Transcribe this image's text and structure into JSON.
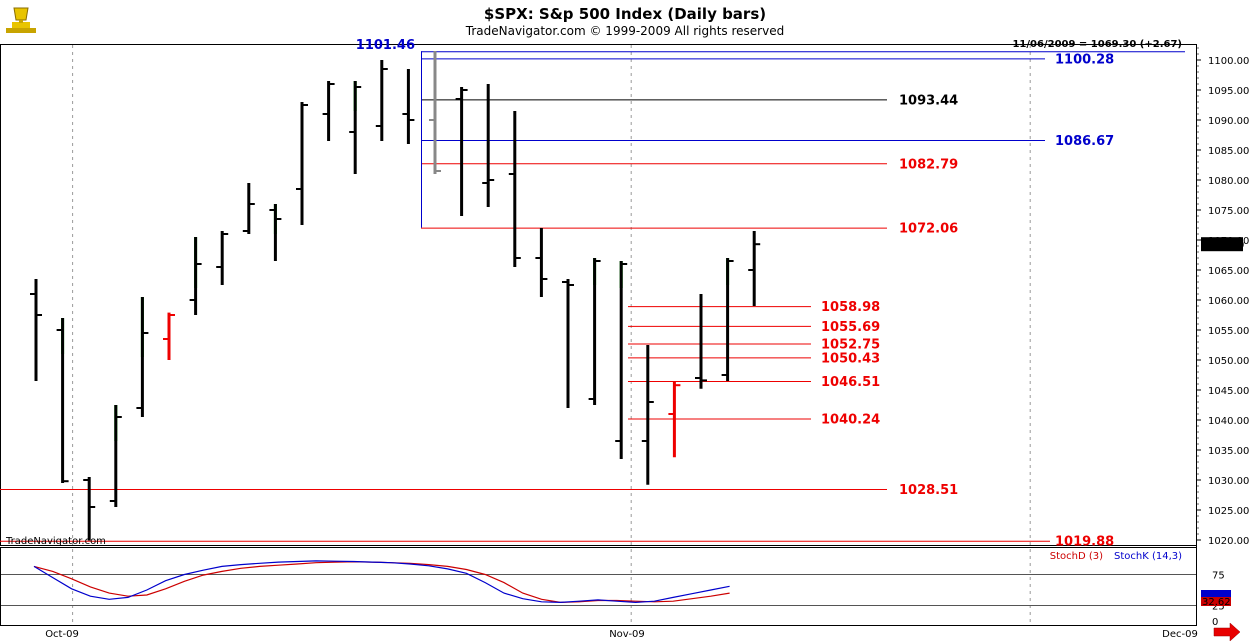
{
  "header": {
    "title": "$SPX:  S&p 500 Index  (Daily bars)",
    "subtitle": "TradeNavigator.com © 1999-2009 All rights reserved",
    "info": "11/06/2009 = 1069.30 (+2.67)",
    "watermark": "TradeNavigator.com"
  },
  "icons": {
    "logo": "trophy-icon",
    "next": "red-right-arrow-icon"
  },
  "colors": {
    "up": "#00dd00",
    "down": "#ee0000",
    "bar": "#000000",
    "blue_level": "#0000cc",
    "red_level": "#ee0000",
    "stoch_d": "#cc0000",
    "stoch_k": "#0000cc",
    "grid": "#9a9a9a"
  },
  "chart_data": [
    {
      "type": "ohlc",
      "title": "$SPX:  S&p 500 Index  (Daily bars)",
      "ylim": [
        1017,
        1104
      ],
      "y_ticks": [
        "1100.00",
        "1095.00",
        "1090.00",
        "1085.00",
        "1080.00",
        "1075.00",
        "1070.00",
        "1065.00",
        "1060.00",
        "1055.00",
        "1050.00",
        "1045.00",
        "1040.00",
        "1035.00",
        "1030.00",
        "1025.00",
        "1020.00"
      ],
      "x_labels": [
        {
          "label": "Oct-09",
          "bar": 1
        },
        {
          "label": "Nov-09",
          "bar": 22
        },
        {
          "label": "Dec-09",
          "bar": 37
        }
      ],
      "last_price_label": "1069.30",
      "bars": [
        {
          "o": 1061,
          "h": 1063.5,
          "l": 1046.5,
          "c": 1057.5
        },
        {
          "o": 1055,
          "h": 1057,
          "l": 1029.5,
          "c": 1029.8,
          "mark": "green"
        },
        {
          "o": 1030,
          "h": 1030.5,
          "l": 1019.9,
          "c": 1025.5
        },
        {
          "o": 1026.5,
          "h": 1042.5,
          "l": 1025.5,
          "c": 1040.5,
          "mark": "green"
        },
        {
          "o": 1042,
          "h": 1060.5,
          "l": 1040.5,
          "c": 1054.5,
          "mark": "green"
        },
        {
          "o": 1053.5,
          "h": 1057.9,
          "l": 1050,
          "c": 1057.5,
          "mark": "red"
        },
        {
          "o": 1060,
          "h": 1070.5,
          "l": 1057.5,
          "c": 1066,
          "mark": "green"
        },
        {
          "o": 1065.5,
          "h": 1071.5,
          "l": 1062.5,
          "c": 1071
        },
        {
          "o": 1071.5,
          "h": 1079.5,
          "l": 1071,
          "c": 1076
        },
        {
          "o": 1075,
          "h": 1076,
          "l": 1066.5,
          "c": 1073.5,
          "mark": "green"
        },
        {
          "o": 1078.5,
          "h": 1093,
          "l": 1072.5,
          "c": 1092.5,
          "mark": "green"
        },
        {
          "o": 1091,
          "h": 1096.5,
          "l": 1086.5,
          "c": 1096
        },
        {
          "o": 1088,
          "h": 1096.5,
          "l": 1081,
          "c": 1095.5,
          "mark": "green"
        },
        {
          "o": 1089,
          "h": 1100,
          "l": 1086.5,
          "c": 1098.5
        },
        {
          "o": 1091,
          "h": 1098.5,
          "l": 1086,
          "c": 1090
        },
        {
          "o": 1090,
          "h": 1101.5,
          "l": 1081,
          "c": 1081.5,
          "mark": "gray"
        },
        {
          "o": 1093.5,
          "h": 1095.5,
          "l": 1074,
          "c": 1095
        },
        {
          "o": 1079.5,
          "h": 1096,
          "l": 1075.5,
          "c": 1080
        },
        {
          "o": 1081,
          "h": 1091.5,
          "l": 1065.5,
          "c": 1067
        },
        {
          "o": 1067,
          "h": 1072,
          "l": 1060.5,
          "c": 1063.5
        },
        {
          "o": 1063,
          "h": 1063.5,
          "l": 1042,
          "c": 1062.5,
          "mark": "green"
        },
        {
          "o": 1043.5,
          "h": 1067,
          "l": 1042.5,
          "c": 1066.5,
          "mark": "green"
        },
        {
          "o": 1036.5,
          "h": 1066.5,
          "l": 1033.5,
          "c": 1066,
          "mark": "green"
        },
        {
          "o": 1036.5,
          "h": 1052.5,
          "l": 1029.2,
          "c": 1043
        },
        {
          "o": 1041,
          "h": 1046.5,
          "l": 1033.8,
          "c": 1045.8,
          "mark": "red"
        },
        {
          "o": 1047,
          "h": 1061,
          "l": 1045.2,
          "c": 1046.6
        },
        {
          "o": 1047.5,
          "h": 1067,
          "l": 1046.5,
          "c": 1066.5,
          "mark": "green"
        },
        {
          "o": 1065,
          "h": 1071.5,
          "l": 1059,
          "c": 1069.3
        }
      ],
      "levels": [
        {
          "value": 1101.46,
          "label": "1101.46",
          "color": "blue",
          "label_pos": "left"
        },
        {
          "value": 1100.28,
          "label": "1100.28",
          "color": "blue",
          "label_pos": "far"
        },
        {
          "value": 1093.44,
          "label": "1093.44",
          "color": "black",
          "label_pos": "mid"
        },
        {
          "value": 1086.67,
          "label": "1086.67",
          "color": "blue",
          "label_pos": "far"
        },
        {
          "value": 1082.79,
          "label": "1082.79",
          "color": "red",
          "label_pos": "mid"
        },
        {
          "value": 1072.06,
          "label": "1072.06",
          "color": "red",
          "label_pos": "mid"
        },
        {
          "value": 1058.98,
          "label": "1058.98",
          "color": "red",
          "label_pos": "short"
        },
        {
          "value": 1055.69,
          "label": "1055.69",
          "color": "red",
          "label_pos": "short"
        },
        {
          "value": 1052.75,
          "label": "1052.75",
          "color": "red",
          "label_pos": "short"
        },
        {
          "value": 1050.43,
          "label": "1050.43",
          "color": "red",
          "label_pos": "short"
        },
        {
          "value": 1046.51,
          "label": "1046.51",
          "color": "red",
          "label_pos": "short"
        },
        {
          "value": 1040.24,
          "label": "1040.24",
          "color": "red",
          "label_pos": "short"
        },
        {
          "value": 1028.51,
          "label": "1028.51",
          "color": "red",
          "label_pos": "mid"
        },
        {
          "value": 1019.88,
          "label": "1019.88",
          "color": "red",
          "label_pos": "far"
        }
      ]
    },
    {
      "type": "line",
      "title": "Stochastic",
      "ylim": [
        0,
        100
      ],
      "y_ticks": [
        "75",
        "25",
        "0"
      ],
      "series": [
        {
          "name": "StochD (3)",
          "values": [
            88,
            80,
            68,
            55,
            45,
            40,
            42,
            52,
            64,
            74,
            80,
            85,
            88,
            90,
            92,
            94,
            95,
            95.5,
            95,
            94,
            93,
            91,
            88,
            83,
            75,
            62,
            45,
            35,
            30,
            31,
            33,
            33,
            32,
            31,
            32,
            36,
            40,
            45
          ]
        },
        {
          "name": "StochK (14,3)",
          "values": [
            88,
            70,
            52,
            40,
            35,
            38,
            50,
            65,
            75,
            82,
            88,
            91,
            93,
            95,
            96,
            97,
            96.5,
            96,
            95,
            94,
            92,
            89,
            84,
            77,
            62,
            45,
            36,
            31,
            30,
            32,
            34,
            32,
            30,
            32,
            38,
            44,
            50,
            56
          ]
        }
      ],
      "last_values": [
        "32.62"
      ]
    }
  ]
}
